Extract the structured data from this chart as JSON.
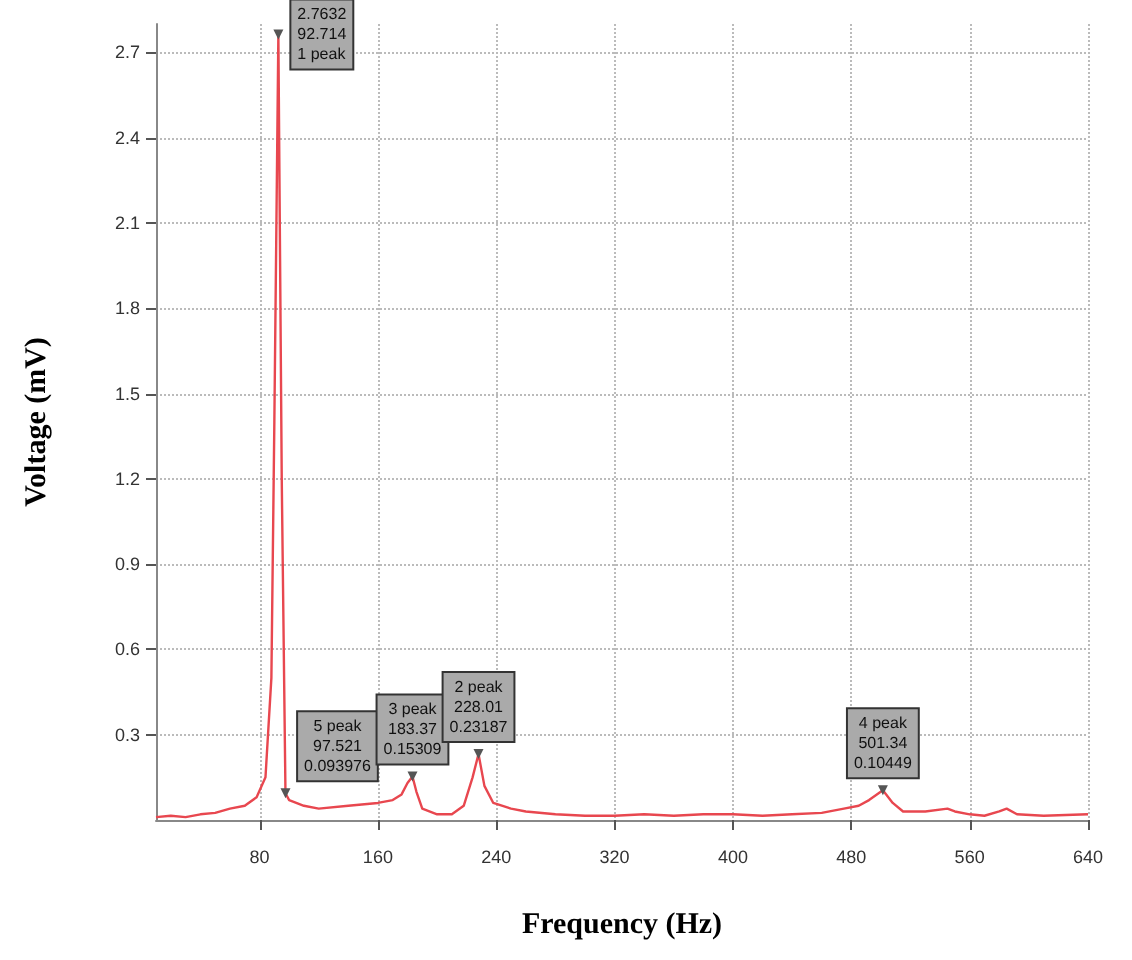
{
  "chart_data": {
    "type": "line",
    "xlabel": "Frequency (Hz)",
    "ylabel": "Voltage (mV)",
    "x": [
      10,
      20,
      30,
      40,
      50,
      60,
      70,
      78,
      84,
      88,
      90,
      92.714,
      95,
      97.521,
      100,
      110,
      120,
      140,
      160,
      170,
      176,
      180,
      183.37,
      186,
      190,
      200,
      210,
      218,
      224,
      228.01,
      232,
      238,
      250,
      260,
      280,
      300,
      320,
      340,
      360,
      380,
      400,
      420,
      440,
      460,
      475,
      485,
      492,
      501.34,
      508,
      515,
      530,
      545,
      550,
      560,
      570,
      580,
      585,
      592,
      610,
      640
    ],
    "series": [
      {
        "color": "#e8474f",
        "values": [
          0.01,
          0.015,
          0.01,
          0.02,
          0.025,
          0.04,
          0.05,
          0.08,
          0.15,
          0.5,
          1.4,
          2.7632,
          1.2,
          0.093976,
          0.07,
          0.05,
          0.04,
          0.05,
          0.06,
          0.07,
          0.09,
          0.13,
          0.15309,
          0.1,
          0.04,
          0.02,
          0.02,
          0.05,
          0.15,
          0.23187,
          0.12,
          0.06,
          0.04,
          0.03,
          0.02,
          0.015,
          0.015,
          0.02,
          0.015,
          0.02,
          0.02,
          0.015,
          0.02,
          0.025,
          0.04,
          0.05,
          0.07,
          0.10449,
          0.06,
          0.03,
          0.03,
          0.04,
          0.03,
          0.02,
          0.015,
          0.03,
          0.04,
          0.02,
          0.015,
          0.02
        ]
      }
    ],
    "xlim": [
      10,
      640
    ],
    "xticks": [
      80,
      160,
      240,
      320,
      400,
      480,
      560,
      640
    ],
    "ylim": [
      0,
      2.8
    ],
    "yticks": [
      0.3,
      0.6,
      0.9,
      1.2,
      1.5,
      1.8,
      2.1,
      2.4,
      2.7
    ],
    "grid": true,
    "marker": "none",
    "line_style": "solid",
    "annotations": [
      {
        "text": "2.7632\n92.714\n1 peak",
        "x": 92.714,
        "y": 2.7632
      },
      {
        "text": "5 peak\n97.521\n0.093976",
        "x": 97.521,
        "y": 0.093976
      },
      {
        "text": "3 peak\n183.37\n0.15309",
        "x": 183.37,
        "y": 0.15309
      },
      {
        "text": "2 peak\n228.01\n0.23187",
        "x": 228.01,
        "y": 0.23187
      },
      {
        "text": "4 peak\n501.34\n0.10449",
        "x": 501.34,
        "y": 0.10449
      }
    ]
  }
}
